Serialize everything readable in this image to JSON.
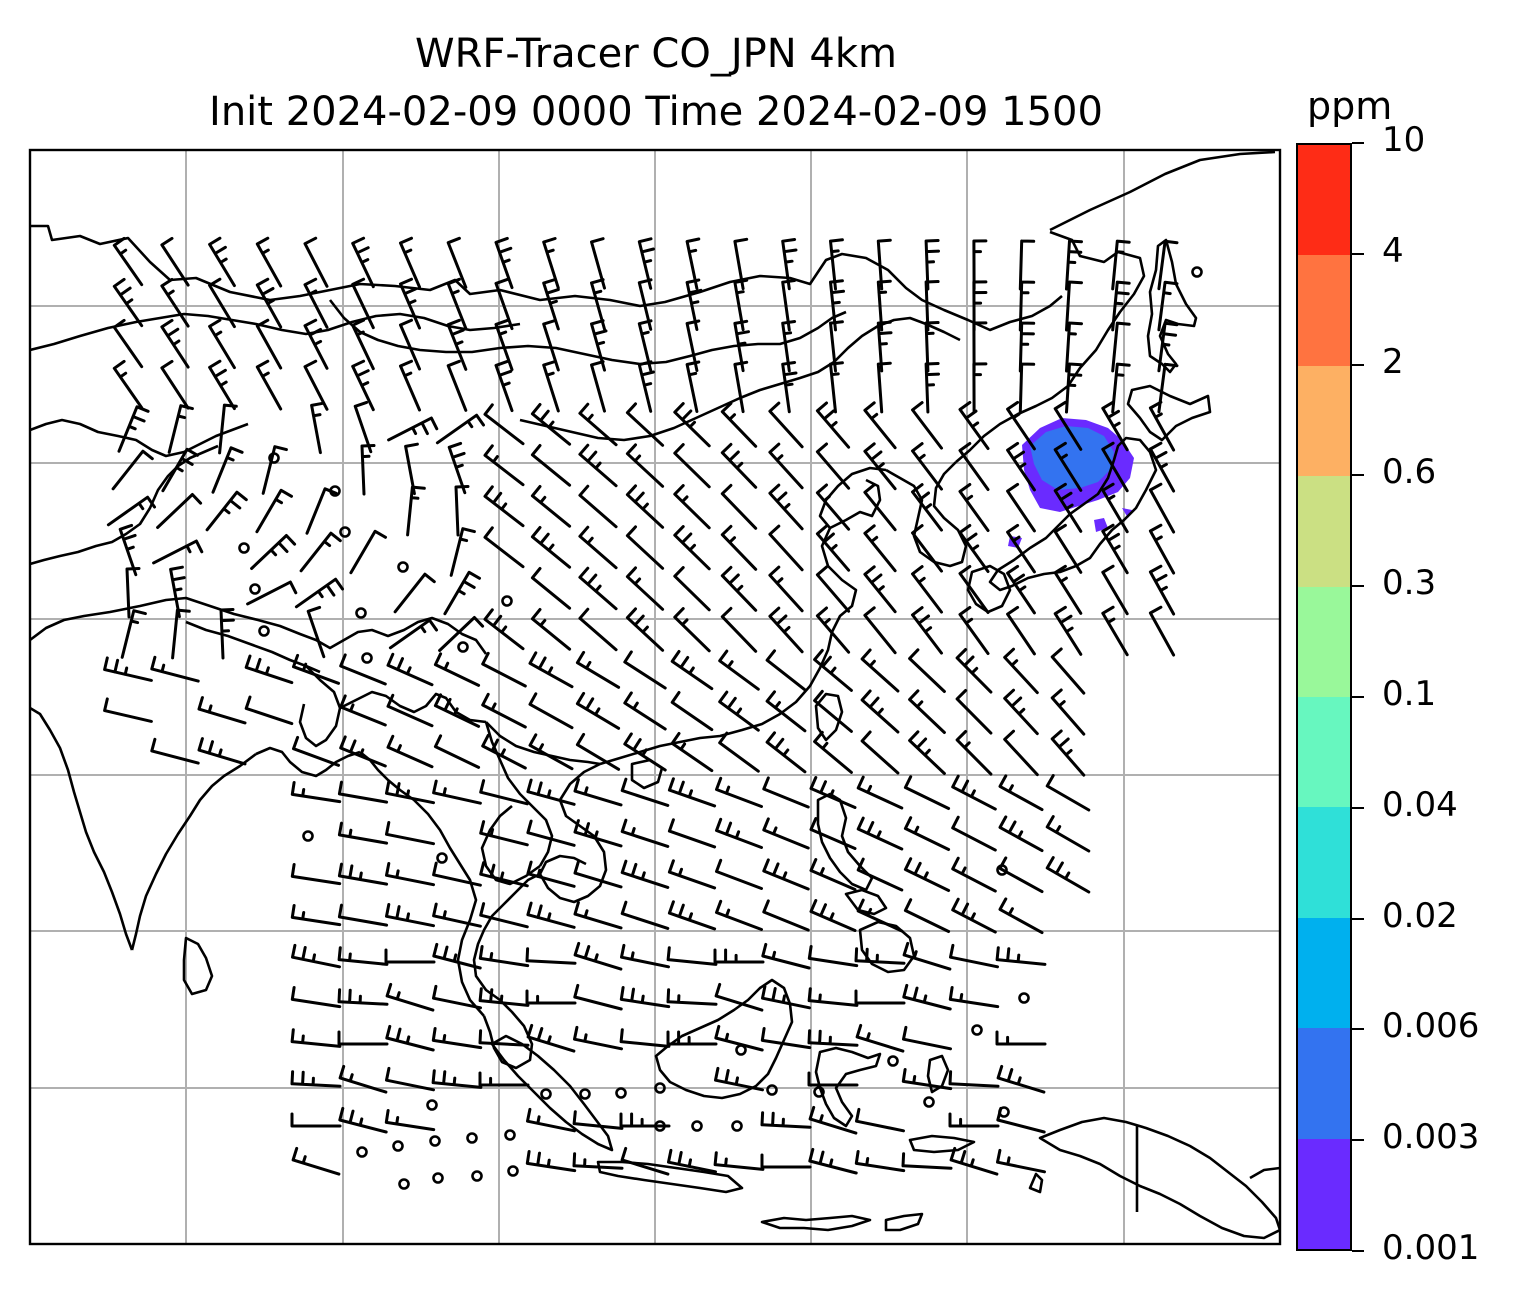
{
  "title": {
    "line1": "WRF-Tracer CO_JPN 4km",
    "line2": "Init 2024-02-09 0000 Time 2024-02-09 1500"
  },
  "colorbar": {
    "unit": "ppm",
    "ticks": [
      "0.001",
      "0.003",
      "0.006",
      "0.02",
      "0.04",
      "0.1",
      "0.3",
      "0.6",
      "2",
      "4",
      "10"
    ],
    "colors": [
      "#6a2bff",
      "#3373f0",
      "#00b0ee",
      "#2fe0d8",
      "#67f7bf",
      "#99f89a",
      "#cbe083",
      "#fdb063",
      "#ff7340",
      "#fe2c16"
    ]
  },
  "map": {
    "gridlines": true,
    "coastline_color": "#000000",
    "gridline_color": "#b0b0b0",
    "tracer_plume_region": "Japan (Honshu)",
    "tracer_level": "0.001-0.006 ppm",
    "wind_barbs": true
  }
}
